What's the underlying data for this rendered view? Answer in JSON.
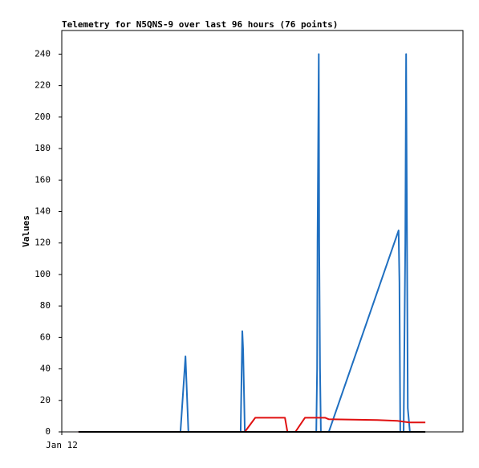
{
  "chart_data": {
    "type": "line",
    "title": "Telemetry for N5QNS-9 over last 96 hours (76 points)",
    "y_label": "Values",
    "xlim": [
      0,
      96
    ],
    "xticks": [
      {
        "value": 0,
        "label": "Jan 12"
      }
    ],
    "ylim": [
      0,
      255
    ],
    "yticks": [
      0,
      20,
      40,
      60,
      80,
      100,
      120,
      140,
      160,
      180,
      200,
      220,
      240
    ],
    "grid": false,
    "series": [
      {
        "color": "#1f6fc0",
        "x": [
          4,
          28.4,
          29.6,
          30.3,
          42.8,
          43.2,
          43.4,
          43.8,
          60.9,
          61.1,
          61.2,
          61.4,
          61.5,
          61.6,
          61.8,
          62.0,
          63.9,
          80.6,
          80.8,
          81.0,
          81.8,
          82.2,
          82.4,
          82.6,
          82.8,
          83.3
        ],
        "values": [
          0,
          0,
          48,
          0,
          0,
          64,
          52,
          0,
          0,
          40,
          120,
          200,
          240,
          120,
          40,
          0,
          0,
          128,
          95,
          0,
          0,
          120,
          240,
          128,
          15,
          0
        ]
      },
      {
        "color": "#e01010",
        "x": [
          4,
          42.8,
          43.8,
          46.3,
          53.4,
          54.0,
          55.9,
          58.2,
          63.0,
          63.9,
          75.5,
          80.3,
          83.1,
          87.0
        ],
        "values": [
          0,
          0,
          0,
          9,
          9,
          0,
          0,
          9,
          9,
          8,
          7.5,
          7,
          6,
          6
        ]
      },
      {
        "color": "#000000",
        "x": [
          4,
          87
        ],
        "values": [
          0,
          0
        ]
      }
    ]
  }
}
